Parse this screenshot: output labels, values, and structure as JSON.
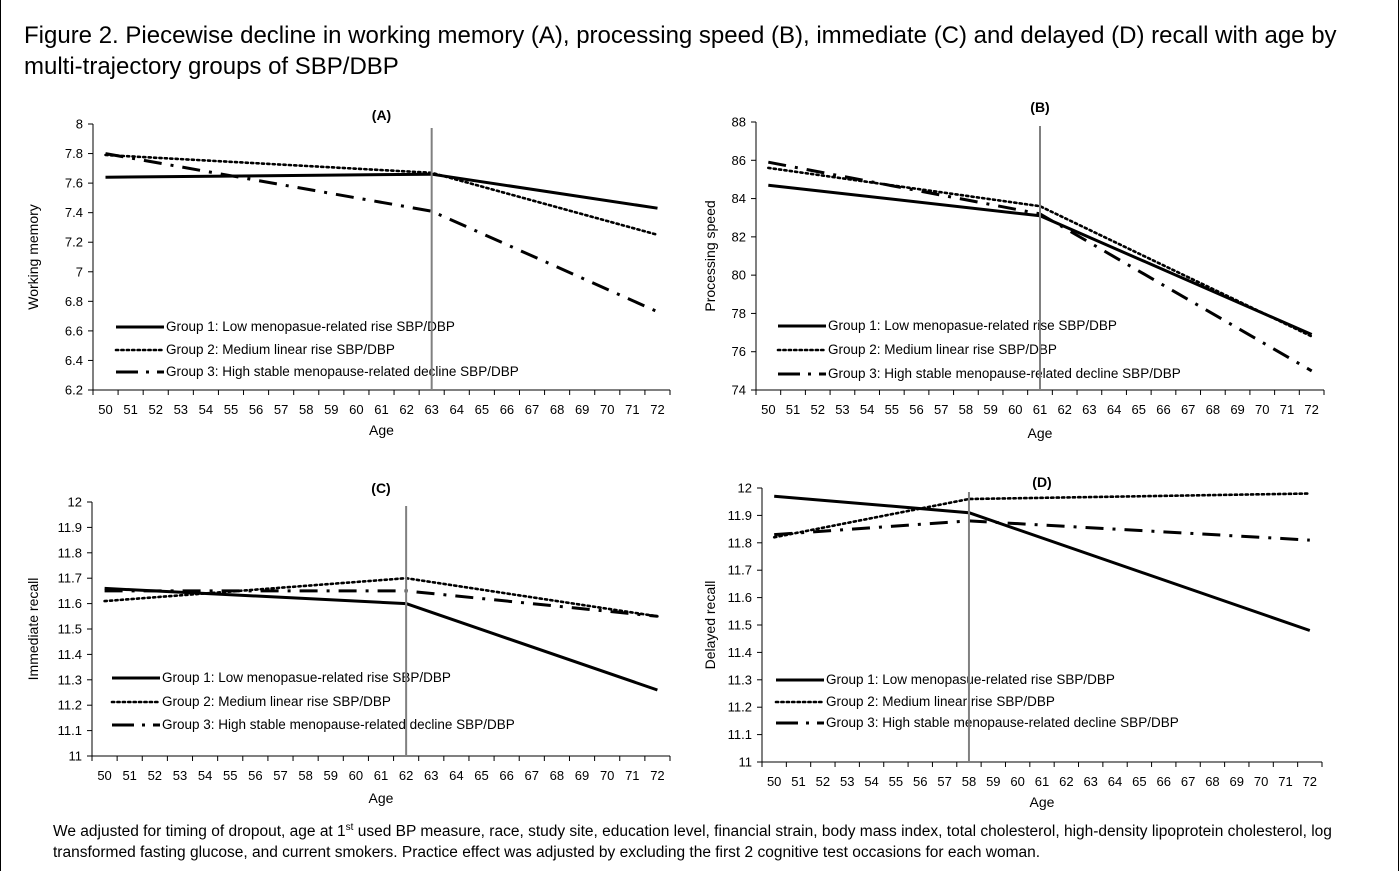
{
  "figure": {
    "title": "Figure 2. Piecewise decline in working memory (A), processing speed (B), immediate (C) and delayed (D) recall with age by multi-trajectory groups of SBP/DBP",
    "footnote_before_sup": "We adjusted for timing of dropout, age at 1",
    "footnote_sup": "st",
    "footnote_after_sup": " used BP measure, race, study site, education level, financial strain, body mass index, total cholesterol, high-density lipoprotein cholesterol, log transformed fasting glucose, and current smokers. Practice effect was adjusted by excluding the first 2 cognitive test occasions for each woman."
  },
  "legend_labels": [
    "Group 1: Low menopasue-related rise SBP/DBP",
    "Group 2: Medium linear rise SBP/DBP",
    "Group 3: High stable menopause-related decline SBP/DBP"
  ],
  "colors": {
    "lines": "#000000",
    "breakpoint": "#808080",
    "axis": "#000000"
  },
  "chart_data": [
    {
      "type": "line",
      "panel": "A",
      "title": "(A)",
      "xlabel": "Age",
      "ylabel": "Working memory",
      "categories": [
        "50",
        "51",
        "52",
        "53",
        "54",
        "55",
        "56",
        "57",
        "58",
        "59",
        "60",
        "61",
        "62",
        "63",
        "64",
        "65",
        "66",
        "67",
        "68",
        "69",
        "70",
        "71",
        "72"
      ],
      "ylim": [
        6.2,
        8
      ],
      "yticks": [
        "8",
        "7.8",
        "7.6",
        "7.4",
        "7.2",
        "7",
        "6.8",
        "6.6",
        "6.4",
        "6.2"
      ],
      "breakpoint_age": 63,
      "legend_position": "bottom-left",
      "series": [
        {
          "name": "Group 1: Low menopasue-related rise SBP/DBP",
          "style": "solid",
          "points": [
            [
              50,
              7.64
            ],
            [
              63,
              7.66
            ],
            [
              72,
              7.43
            ]
          ]
        },
        {
          "name": "Group 2: Medium linear rise SBP/DBP",
          "style": "dotted",
          "points": [
            [
              50,
              7.79
            ],
            [
              63,
              7.67
            ],
            [
              72,
              7.25
            ]
          ]
        },
        {
          "name": "Group 3: High stable menopause-related decline SBP/DBP",
          "style": "dashdot",
          "points": [
            [
              50,
              7.8
            ],
            [
              63,
              7.41
            ],
            [
              72,
              6.73
            ]
          ]
        }
      ]
    },
    {
      "type": "line",
      "panel": "B",
      "title": "(B)",
      "xlabel": "Age",
      "ylabel": "Processing speed",
      "categories": [
        "50",
        "51",
        "52",
        "53",
        "54",
        "55",
        "56",
        "57",
        "58",
        "59",
        "60",
        "61",
        "62",
        "63",
        "64",
        "65",
        "66",
        "67",
        "68",
        "69",
        "70",
        "71",
        "72"
      ],
      "ylim": [
        74,
        88
      ],
      "yticks": [
        "88",
        "86",
        "84",
        "82",
        "80",
        "78",
        "76",
        "74"
      ],
      "breakpoint_age": 61,
      "legend_position": "bottom-left",
      "series": [
        {
          "name": "Group 1: Low menopasue-related rise SBP/DBP",
          "style": "solid",
          "points": [
            [
              50,
              84.7
            ],
            [
              61,
              83.1
            ],
            [
              72,
              76.9
            ]
          ]
        },
        {
          "name": "Group 2: Medium linear rise SBP/DBP",
          "style": "dotted",
          "points": [
            [
              50,
              85.6
            ],
            [
              61,
              83.6
            ],
            [
              72,
              76.8
            ]
          ]
        },
        {
          "name": "Group 3: High stable menopause-related decline SBP/DBP",
          "style": "dashdot",
          "points": [
            [
              50,
              85.9
            ],
            [
              61,
              83.2
            ],
            [
              72,
              75
            ]
          ]
        }
      ]
    },
    {
      "type": "line",
      "panel": "C",
      "title": "(C)",
      "xlabel": "Age",
      "ylabel": "Immediate recall",
      "categories": [
        "50",
        "51",
        "52",
        "53",
        "54",
        "55",
        "56",
        "57",
        "58",
        "59",
        "60",
        "61",
        "62",
        "63",
        "64",
        "65",
        "66",
        "67",
        "68",
        "69",
        "70",
        "71",
        "72"
      ],
      "ylim": [
        11,
        12
      ],
      "yticks": [
        "12",
        "11.9",
        "11.8",
        "11.7",
        "11.6",
        "11.5",
        "11.4",
        "11.3",
        "11.2",
        "11.1",
        "11"
      ],
      "breakpoint_age": 62,
      "legend_position": "bottom-left",
      "series": [
        {
          "name": "Group 1: Low menopasue-related rise SBP/DBP",
          "style": "solid",
          "points": [
            [
              50,
              11.66
            ],
            [
              62,
              11.6
            ],
            [
              72,
              11.26
            ]
          ]
        },
        {
          "name": "Group 2: Medium linear rise SBP/DBP",
          "style": "dotted",
          "points": [
            [
              50,
              11.61
            ],
            [
              62,
              11.7
            ],
            [
              72,
              11.55
            ]
          ]
        },
        {
          "name": "Group 3: High stable menopause-related decline SBP/DBP",
          "style": "dashdot",
          "points": [
            [
              50,
              11.65
            ],
            [
              62,
              11.65
            ],
            [
              72,
              11.55
            ]
          ]
        }
      ]
    },
    {
      "type": "line",
      "panel": "D",
      "title": "(D)",
      "xlabel": "Age",
      "ylabel": "Delayed recall",
      "categories": [
        "50",
        "51",
        "52",
        "53",
        "54",
        "55",
        "56",
        "57",
        "58",
        "59",
        "60",
        "61",
        "62",
        "63",
        "64",
        "65",
        "66",
        "67",
        "68",
        "69",
        "70",
        "71",
        "72"
      ],
      "ylim": [
        11,
        12
      ],
      "yticks": [
        "12",
        "11.9",
        "11.8",
        "11.7",
        "11.6",
        "11.5",
        "11.4",
        "11.3",
        "11.2",
        "11.1",
        "11"
      ],
      "breakpoint_age": 58,
      "legend_position": "bottom-left",
      "series": [
        {
          "name": "Group 1: Low menopasue-related rise SBP/DBP",
          "style": "solid",
          "points": [
            [
              50,
              11.97
            ],
            [
              58,
              11.91
            ],
            [
              72,
              11.48
            ]
          ]
        },
        {
          "name": "Group 2: Medium linear rise SBP/DBP",
          "style": "dotted",
          "points": [
            [
              50,
              11.82
            ],
            [
              58,
              11.96
            ],
            [
              72,
              11.98
            ]
          ]
        },
        {
          "name": "Group 3: High stable menopause-related decline SBP/DBP",
          "style": "dashdot",
          "points": [
            [
              50,
              11.83
            ],
            [
              58,
              11.88
            ],
            [
              72,
              11.81
            ]
          ]
        }
      ]
    }
  ]
}
